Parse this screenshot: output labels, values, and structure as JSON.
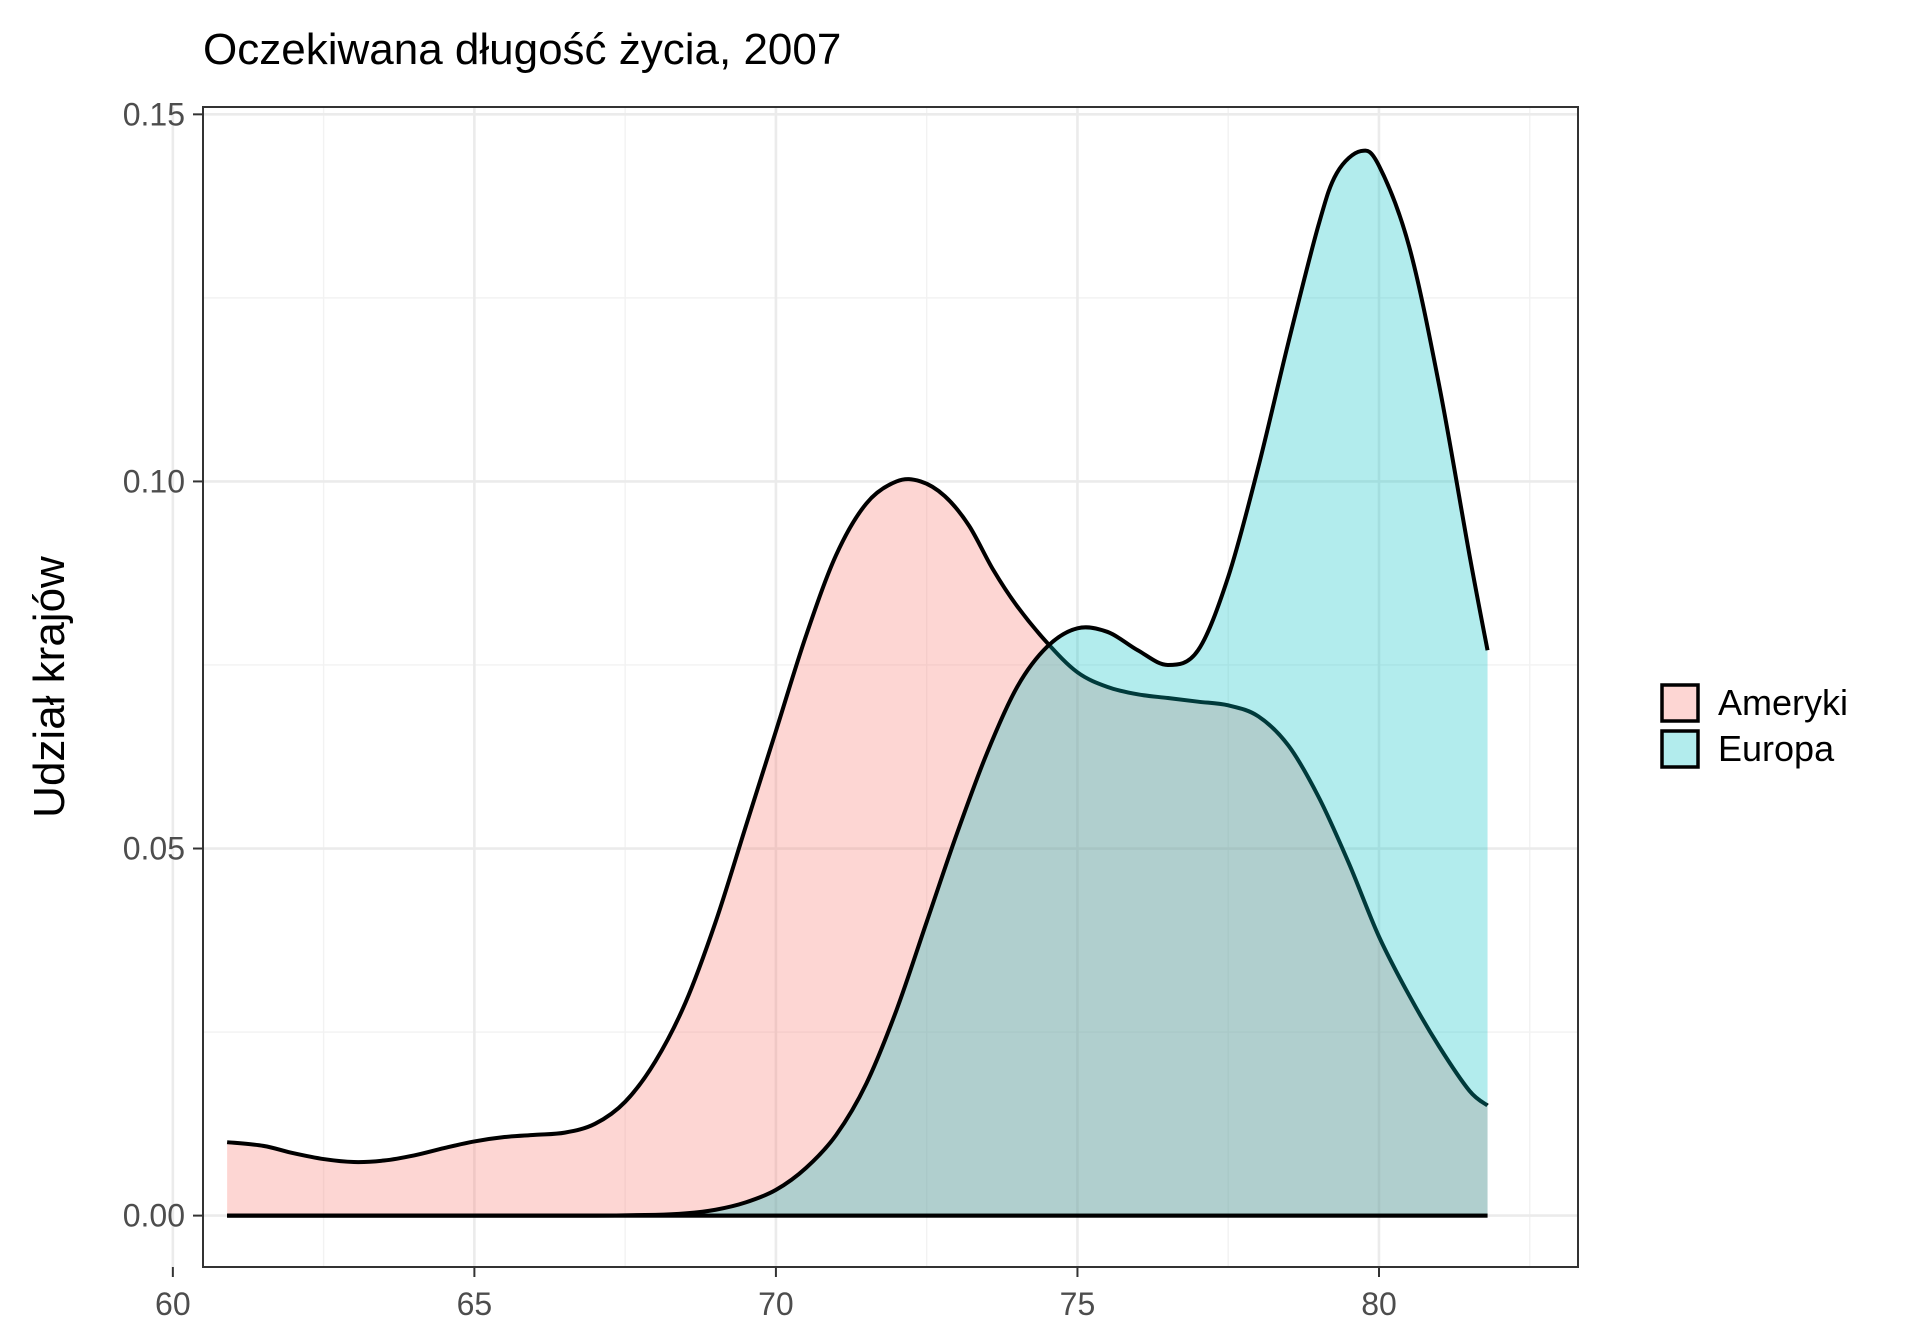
{
  "chart_data": {
    "type": "area",
    "title": "Oczekiwana długość życia, 2007",
    "xlabel": "",
    "ylabel": "Udział krajów",
    "xlim": [
      60.5,
      83.3
    ],
    "ylim": [
      -0.007,
      0.151
    ],
    "x_ticks": [
      60,
      65,
      70,
      75,
      80
    ],
    "x_tick_labels": [
      "60",
      "65",
      "70",
      "75",
      "80"
    ],
    "y_ticks": [
      0,
      0.05,
      0.1,
      0.15
    ],
    "y_tick_labels": [
      "0.00",
      "0.05",
      "0.10",
      "0.15"
    ],
    "grid": true,
    "legend_position": "right",
    "series": [
      {
        "name": "Ameryki",
        "fill": "#F8766D",
        "fill_opacity": 0.3,
        "x": [
          60.9,
          61.5,
          62.0,
          62.5,
          63.0,
          63.5,
          64.0,
          64.5,
          65.0,
          65.5,
          66.0,
          66.5,
          67.0,
          67.5,
          68.0,
          68.5,
          69.0,
          69.5,
          70.0,
          70.5,
          71.0,
          71.5,
          72.0,
          72.4,
          72.8,
          73.2,
          73.6,
          74.0,
          74.5,
          75.0,
          75.5,
          76.0,
          76.5,
          77.0,
          77.5,
          78.0,
          78.5,
          79.0,
          79.5,
          80.0,
          80.5,
          81.0,
          81.5,
          81.8
        ],
        "values": [
          0.01,
          0.0095,
          0.0085,
          0.0077,
          0.0073,
          0.0075,
          0.0082,
          0.0092,
          0.0101,
          0.0107,
          0.011,
          0.0113,
          0.0125,
          0.0155,
          0.021,
          0.029,
          0.04,
          0.053,
          0.066,
          0.079,
          0.09,
          0.097,
          0.1,
          0.1,
          0.098,
          0.094,
          0.088,
          0.083,
          0.078,
          0.074,
          0.072,
          0.071,
          0.0705,
          0.07,
          0.0695,
          0.068,
          0.064,
          0.057,
          0.048,
          0.038,
          0.03,
          0.023,
          0.017,
          0.015
        ]
      },
      {
        "name": "Europa",
        "fill": "#00BFC4",
        "fill_opacity": 0.3,
        "x": [
          60.9,
          62.0,
          63.0,
          64.0,
          65.0,
          66.0,
          67.0,
          68.0,
          68.5,
          69.0,
          69.5,
          70.0,
          70.5,
          71.0,
          71.5,
          72.0,
          72.5,
          73.0,
          73.5,
          74.0,
          74.5,
          75.0,
          75.5,
          76.0,
          76.5,
          77.0,
          77.5,
          78.0,
          78.5,
          79.0,
          79.3,
          79.7,
          80.0,
          80.5,
          81.0,
          81.5,
          81.8
        ],
        "values": [
          0.0,
          0.0,
          0.0,
          0.0,
          0.0,
          0.0,
          0.0,
          0.0001,
          0.0003,
          0.0008,
          0.0018,
          0.0035,
          0.0065,
          0.011,
          0.018,
          0.028,
          0.04,
          0.052,
          0.063,
          0.072,
          0.0775,
          0.08,
          0.0795,
          0.077,
          0.075,
          0.077,
          0.087,
          0.102,
          0.119,
          0.135,
          0.142,
          0.145,
          0.143,
          0.132,
          0.113,
          0.09,
          0.077
        ]
      }
    ]
  }
}
